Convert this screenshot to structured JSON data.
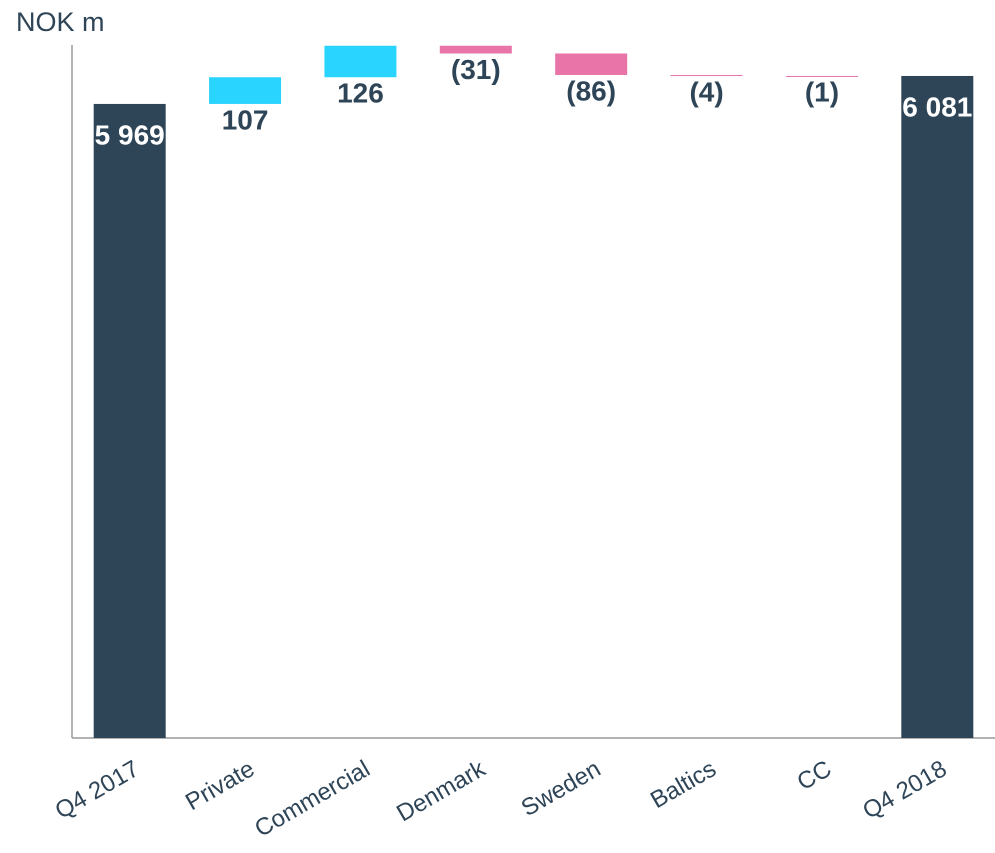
{
  "chart_data": {
    "type": "waterfall",
    "y_label": "NOK m",
    "categories": [
      "Q4 2017",
      "Private",
      "Commercial",
      "Denmark",
      "Sweden",
      "Baltics",
      "CC",
      "Q4 2018"
    ],
    "values": [
      5969,
      107,
      126,
      -31,
      -86,
      -4,
      -1,
      6081
    ],
    "value_labels": [
      "5 969",
      "107",
      "126",
      "(31)",
      "(86)",
      "(4)",
      "(1)",
      "6 081"
    ],
    "colors": [
      "#2e4457",
      "#29d4ff",
      "#29d4ff",
      "#e974a8",
      "#e974a8",
      "#e974a8",
      "#e974a8",
      "#2e4457"
    ],
    "ylim": [
      3430,
      6205
    ]
  }
}
